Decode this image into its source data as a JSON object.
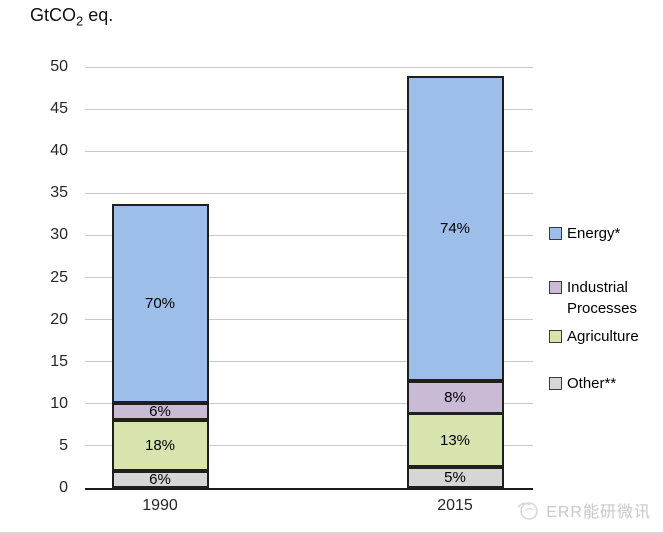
{
  "title": {
    "prefix": "GtCO",
    "sub": "2",
    "suffix": " eq."
  },
  "watermark": {
    "text": "ERR能研微讯"
  },
  "legend": {
    "items": [
      {
        "label": "Energy*",
        "color": "#9dbee8"
      },
      {
        "label": "Industrial Processes",
        "color": "#c9bad5"
      },
      {
        "label": "Agriculture",
        "color": "#d7e4ae"
      },
      {
        "label": "Other**",
        "color": "#d6d6d6"
      }
    ]
  },
  "chart_data": {
    "type": "bar",
    "stacked": true,
    "title": "GtCO2 eq.",
    "ylabel": "GtCO2 eq.",
    "xlabel": "",
    "categories": [
      "1990",
      "2015"
    ],
    "totals_gt": [
      33.8,
      49
    ],
    "y_axis": {
      "min": 0,
      "max": 50,
      "step": 5,
      "ticks": [
        0,
        5,
        10,
        15,
        20,
        25,
        30,
        35,
        40,
        45,
        50
      ]
    },
    "series": [
      {
        "name": "Other**",
        "color": "#d6d6d6",
        "percents": [
          6,
          5
        ],
        "values_gt": [
          2.0,
          2.5
        ]
      },
      {
        "name": "Agriculture",
        "color": "#d7e4ae",
        "percents": [
          18,
          13
        ],
        "values_gt": [
          6.1,
          6.4
        ]
      },
      {
        "name": "Industrial Processes",
        "color": "#c9bad5",
        "percents": [
          6,
          8
        ],
        "values_gt": [
          2.0,
          3.9
        ]
      },
      {
        "name": "Energy*",
        "color": "#9dbee8",
        "percents": [
          70,
          74
        ],
        "values_gt": [
          23.7,
          36.3
        ]
      }
    ],
    "series_order_note": "bottom-to-top",
    "grid": true,
    "legend_position": "right"
  }
}
